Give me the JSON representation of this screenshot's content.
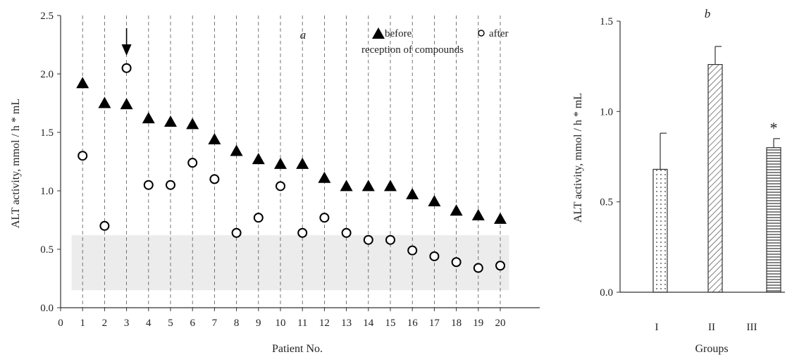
{
  "chart_data": [
    {
      "type": "scatter",
      "panel_label": "a",
      "xlabel": "Patient No.",
      "ylabel": "ALT activity, mmol / h * mL",
      "xlim": [
        0,
        20
      ],
      "ylim": [
        0.0,
        2.5
      ],
      "x_ticks": [
        "0",
        "1",
        "2",
        "3",
        "4",
        "5",
        "6",
        "7",
        "8",
        "9",
        "10",
        "11",
        "12",
        "13",
        "14",
        "15",
        "16",
        "17",
        "18",
        "19",
        "20"
      ],
      "y_ticks": [
        "0.0",
        "0.5",
        "1.0",
        "1.5",
        "2.0",
        "2.5"
      ],
      "legend": {
        "before_label": "before",
        "after_label": "after",
        "caption": "reception of compounds",
        "placement": "top-right"
      },
      "reference_band": {
        "y_from": 0.15,
        "y_to": 0.62,
        "color": "#ececec"
      },
      "arrow_at_patient": 3,
      "series": [
        {
          "name": "before",
          "marker": "filled-triangle",
          "x": [
            1,
            2,
            3,
            4,
            5,
            6,
            7,
            8,
            9,
            10,
            11,
            12,
            13,
            14,
            15,
            16,
            17,
            18,
            19,
            20
          ],
          "values": [
            1.92,
            1.75,
            1.74,
            1.62,
            1.59,
            1.57,
            1.44,
            1.34,
            1.27,
            1.23,
            1.23,
            1.11,
            1.04,
            1.04,
            1.04,
            0.97,
            0.91,
            0.83,
            0.79,
            0.76
          ]
        },
        {
          "name": "after",
          "marker": "open-circle",
          "x": [
            1,
            2,
            3,
            4,
            5,
            6,
            7,
            8,
            9,
            10,
            11,
            12,
            13,
            14,
            15,
            16,
            17,
            18,
            19,
            20
          ],
          "values": [
            1.3,
            0.7,
            2.05,
            1.05,
            1.05,
            1.24,
            1.1,
            0.64,
            0.77,
            1.04,
            0.64,
            0.77,
            0.64,
            0.58,
            0.58,
            0.49,
            0.44,
            0.39,
            0.34,
            0.36
          ]
        }
      ],
      "grid": "vertical dashed at each patient"
    },
    {
      "type": "bar",
      "panel_label": "b",
      "xlabel": "Groups",
      "ylabel": "ALT activity, mmol / h * mL",
      "ylim": [
        0.0,
        1.5
      ],
      "y_ticks": [
        "0.0",
        "0.5",
        "1.0",
        "1.5"
      ],
      "categories": [
        "I",
        "II",
        "III"
      ],
      "values": [
        0.68,
        1.26,
        0.8
      ],
      "errors": [
        0.2,
        0.1,
        0.05
      ],
      "patterns": [
        "dots",
        "diagonal",
        "horizontal"
      ],
      "annotations": [
        {
          "category": "III",
          "text": "*"
        }
      ]
    }
  ]
}
